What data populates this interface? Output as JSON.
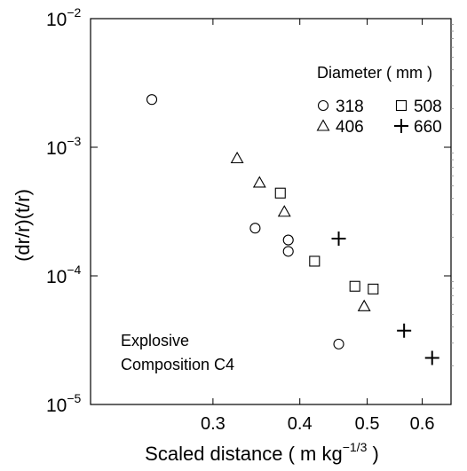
{
  "chart_data": {
    "type": "scatter",
    "xlabel": "Scaled distance ( m kg",
    "xlabel_sup": "−1/3",
    "xlabel_end": " )",
    "ylabel": "(dr/r)(t/r)",
    "x_scale": "log",
    "y_scale": "log",
    "xlim": [
      0.2,
      0.66
    ],
    "ylim": [
      1e-05,
      0.01
    ],
    "grid": false,
    "x_ticks": [
      {
        "value": 0.3,
        "label": "0.3"
      },
      {
        "value": 0.4,
        "label": "0.4"
      },
      {
        "value": 0.5,
        "label": "0.5"
      },
      {
        "value": 0.6,
        "label": "0.6"
      }
    ],
    "y_ticks": [
      {
        "value": 1e-05,
        "base": "10",
        "exp": "−5"
      },
      {
        "value": 0.0001,
        "base": "10",
        "exp": "−4"
      },
      {
        "value": 0.001,
        "base": "10",
        "exp": "−3"
      },
      {
        "value": 0.01,
        "base": "10",
        "exp": "−2"
      }
    ],
    "legend": {
      "title": "Diameter ( mm )",
      "placement": "top-right",
      "entries": [
        {
          "label": "318",
          "marker": "circle"
        },
        {
          "label": "508",
          "marker": "square"
        },
        {
          "label": "406",
          "marker": "triangle"
        },
        {
          "label": "660",
          "marker": "plus"
        }
      ]
    },
    "annotation": [
      "Explosive",
      "Composition C4"
    ],
    "series": [
      {
        "name": "318",
        "marker": "circle",
        "points": [
          [
            0.245,
            0.00235
          ],
          [
            0.345,
            0.000235
          ],
          [
            0.385,
            0.00019
          ],
          [
            0.385,
            0.000155
          ],
          [
            0.455,
            2.95e-05
          ]
        ]
      },
      {
        "name": "406",
        "marker": "triangle",
        "points": [
          [
            0.325,
            0.00082
          ],
          [
            0.35,
            0.00053
          ],
          [
            0.38,
            0.000315
          ],
          [
            0.495,
            5.8e-05
          ]
        ]
      },
      {
        "name": "508",
        "marker": "square",
        "points": [
          [
            0.375,
            0.00044
          ],
          [
            0.42,
            0.00013
          ],
          [
            0.48,
            8.3e-05
          ],
          [
            0.51,
            7.9e-05
          ]
        ]
      },
      {
        "name": "660",
        "marker": "plus",
        "points": [
          [
            0.455,
            0.000195
          ],
          [
            0.565,
            3.75e-05
          ],
          [
            0.62,
            2.3e-05
          ]
        ]
      }
    ]
  }
}
